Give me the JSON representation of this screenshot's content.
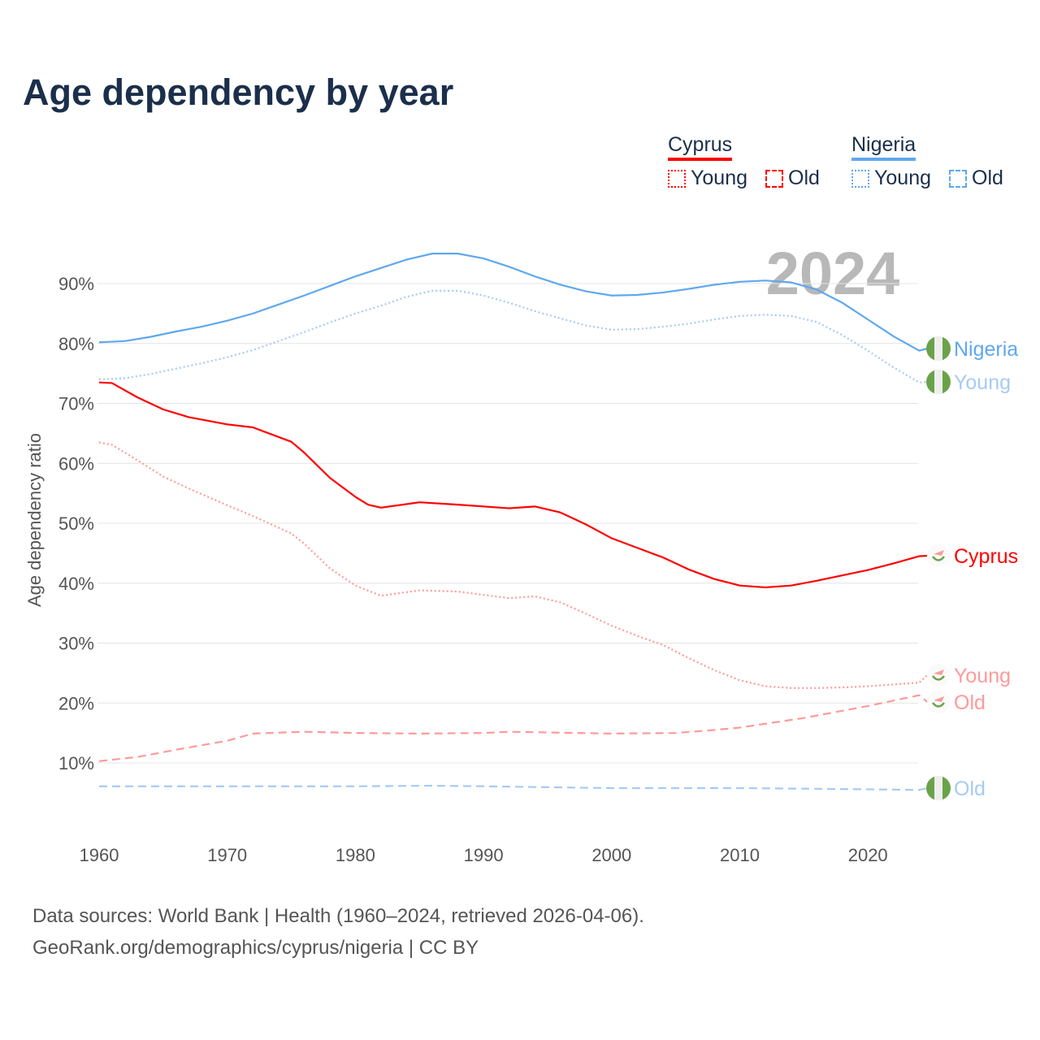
{
  "chart_data": {
    "type": "line",
    "title": "Age dependency by year",
    "ylabel": "Age dependency ratio",
    "xlabel": "",
    "xlim": [
      1960,
      2024
    ],
    "ylim": [
      0,
      100
    ],
    "x_ticks": [
      "1960",
      "1970",
      "1980",
      "1990",
      "2000",
      "2010",
      "2020"
    ],
    "y_ticks": [
      "10%",
      "20%",
      "30%",
      "40%",
      "50%",
      "60%",
      "70%",
      "80%",
      "90%"
    ],
    "year_label": "2024",
    "legend": {
      "placement": "top-right",
      "groups": [
        {
          "name": "Cyprus",
          "color": "#ff0000",
          "items": [
            "Young",
            "Old"
          ]
        },
        {
          "name": "Nigeria",
          "color": "#5fa8ee",
          "items": [
            "Young",
            "Old"
          ]
        }
      ]
    },
    "series": [
      {
        "name": "Nigeria",
        "label": "Nigeria",
        "color": "#5fa8ee",
        "dash": "",
        "x": [
          1960,
          1962,
          1964,
          1966,
          1968,
          1970,
          1972,
          1974,
          1976,
          1978,
          1980,
          1982,
          1984,
          1986,
          1988,
          1990,
          1992,
          1994,
          1996,
          1998,
          2000,
          2002,
          2004,
          2006,
          2008,
          2010,
          2012,
          2014,
          2016,
          2018,
          2020,
          2022,
          2024
        ],
        "values": [
          80.2,
          80.4,
          81.1,
          82.0,
          82.8,
          83.8,
          85.0,
          86.5,
          88.0,
          89.6,
          91.2,
          92.6,
          94.0,
          95.0,
          95.0,
          94.2,
          92.8,
          91.2,
          89.8,
          88.7,
          88.0,
          88.1,
          88.5,
          89.1,
          89.8,
          90.3,
          90.5,
          90.2,
          89.0,
          86.8,
          84.0,
          81.2,
          78.8
        ]
      },
      {
        "name": "Nigeria Young",
        "label": "Young",
        "color": "#a6cbf2",
        "dash": "2 3",
        "x": [
          1960,
          1962,
          1964,
          1966,
          1968,
          1970,
          1972,
          1974,
          1976,
          1978,
          1980,
          1982,
          1984,
          1986,
          1988,
          1990,
          1992,
          1994,
          1996,
          1998,
          2000,
          2002,
          2004,
          2006,
          2008,
          2010,
          2012,
          2014,
          2016,
          2018,
          2020,
          2022,
          2024
        ],
        "values": [
          74.0,
          74.2,
          74.9,
          75.8,
          76.7,
          77.7,
          78.9,
          80.4,
          81.9,
          83.5,
          85.0,
          86.3,
          87.8,
          88.8,
          88.8,
          88.0,
          86.8,
          85.4,
          84.2,
          83.0,
          82.3,
          82.4,
          82.8,
          83.3,
          84.0,
          84.6,
          84.8,
          84.6,
          83.6,
          81.4,
          78.8,
          76.0,
          73.5
        ]
      },
      {
        "name": "Nigeria Old",
        "label": "Old",
        "color": "#a6cbf2",
        "dash": "10 6",
        "x": [
          1960,
          1970,
          1980,
          1986,
          1990,
          2000,
          2010,
          2020,
          2024
        ],
        "values": [
          6.1,
          6.1,
          6.1,
          6.2,
          6.1,
          5.8,
          5.8,
          5.6,
          5.5
        ]
      },
      {
        "name": "Cyprus",
        "label": "Cyprus",
        "color": "#ff0000",
        "dash": "",
        "x": [
          1960,
          1961,
          1963,
          1965,
          1967,
          1970,
          1972,
          1974,
          1975,
          1976,
          1978,
          1980,
          1981,
          1982,
          1985,
          1988,
          1992,
          1994,
          1996,
          1998,
          2000,
          2002,
          2004,
          2006,
          2008,
          2010,
          2012,
          2014,
          2016,
          2018,
          2020,
          2022,
          2024
        ],
        "values": [
          73.5,
          73.4,
          71.0,
          69.0,
          67.7,
          66.5,
          66.0,
          64.4,
          63.6,
          61.8,
          57.6,
          54.4,
          53.1,
          52.6,
          53.5,
          53.1,
          52.5,
          52.8,
          51.8,
          49.8,
          47.5,
          45.9,
          44.3,
          42.3,
          40.7,
          39.6,
          39.3,
          39.6,
          40.4,
          41.3,
          42.2,
          43.3,
          44.5
        ]
      },
      {
        "name": "Cyprus Young",
        "label": "Young",
        "color": "#ff9a9a",
        "dash": "2 3",
        "x": [
          1960,
          1961,
          1963,
          1965,
          1967,
          1970,
          1972,
          1975,
          1976,
          1978,
          1980,
          1982,
          1985,
          1988,
          1992,
          1994,
          1996,
          1998,
          2000,
          2002,
          2004,
          2006,
          2008,
          2010,
          2012,
          2014,
          2016,
          2018,
          2020,
          2022,
          2024
        ],
        "values": [
          63.5,
          63.1,
          60.5,
          57.8,
          55.8,
          53.0,
          51.2,
          48.3,
          46.6,
          42.5,
          39.6,
          37.9,
          38.8,
          38.6,
          37.5,
          37.8,
          36.8,
          34.9,
          32.9,
          31.2,
          29.7,
          27.5,
          25.5,
          23.8,
          22.8,
          22.5,
          22.5,
          22.6,
          22.8,
          23.1,
          23.4
        ]
      },
      {
        "name": "Cyprus Old",
        "label": "Old",
        "color": "#ff9a9a",
        "dash": "10 6",
        "x": [
          1960,
          1963,
          1966,
          1970,
          1972,
          1976,
          1980,
          1985,
          1990,
          1992,
          2000,
          2005,
          2008,
          2010,
          2015,
          2020,
          2024
        ],
        "values": [
          10.3,
          11.0,
          12.2,
          13.7,
          14.9,
          15.2,
          15.0,
          14.9,
          15.0,
          15.2,
          14.9,
          15.0,
          15.5,
          15.9,
          17.5,
          19.5,
          21.3
        ]
      }
    ]
  },
  "footer": {
    "line1": "Data sources: World Bank | Health (1960–2024, retrieved 2026-04-06).",
    "line2": "GeoRank.org/demographics/cyprus/nigeria | CC BY"
  }
}
